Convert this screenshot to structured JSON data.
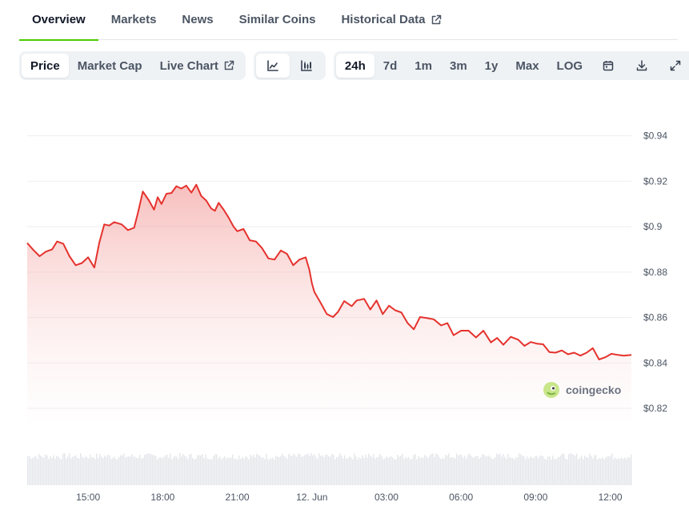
{
  "nav": {
    "tabs": [
      {
        "label": "Overview",
        "active": true
      },
      {
        "label": "Markets",
        "active": false
      },
      {
        "label": "News",
        "active": false
      },
      {
        "label": "Similar Coins",
        "active": false
      },
      {
        "label": "Historical Data",
        "active": false,
        "external_icon": "external-link-icon"
      }
    ]
  },
  "toolbar": {
    "metric_tabs": [
      {
        "label": "Price",
        "active": true
      },
      {
        "label": "Market Cap",
        "active": false
      },
      {
        "label": "Live Chart",
        "active": false,
        "external_icon": "external-link-icon"
      }
    ],
    "chart_type_buttons": [
      {
        "icon": "line-chart-icon",
        "active": true
      },
      {
        "icon": "candlestick-chart-icon",
        "active": false
      }
    ],
    "range_buttons": [
      {
        "label": "24h",
        "active": true
      },
      {
        "label": "7d",
        "active": false
      },
      {
        "label": "1m",
        "active": false
      },
      {
        "label": "3m",
        "active": false
      },
      {
        "label": "1y",
        "active": false
      },
      {
        "label": "Max",
        "active": false
      },
      {
        "label": "LOG",
        "active": false
      }
    ],
    "tool_icons": [
      "calendar-icon",
      "download-icon",
      "expand-icon"
    ]
  },
  "watermark": {
    "text": "coingecko",
    "icon": "gecko-logo-icon"
  },
  "colors": {
    "accent_green": "#4bcc00",
    "line_red": "#e5322d",
    "area_fill": "#f4a7a6",
    "grid": "#eceef1",
    "volume": "#e5e7eb"
  },
  "chart_data": {
    "type": "area",
    "title": "",
    "xlabel": "",
    "ylabel": "",
    "ylim": [
      0.814,
      0.948
    ],
    "y_ticks": [
      0.82,
      0.84,
      0.86,
      0.88,
      0.9,
      0.92,
      0.94
    ],
    "y_tick_labels": [
      "$0.82",
      "$0.84",
      "$0.86",
      "$0.88",
      "$0.9",
      "$0.92",
      "$0.94"
    ],
    "x_range_hours": [
      12.55,
      36.85
    ],
    "x_ticks": [
      {
        "h": 15,
        "label": "15:00"
      },
      {
        "h": 18,
        "label": "18:00"
      },
      {
        "h": 21,
        "label": "21:00"
      },
      {
        "h": 24,
        "label": "12. Jun"
      },
      {
        "h": 27,
        "label": "03:00"
      },
      {
        "h": 30,
        "label": "06:00"
      },
      {
        "h": 33,
        "label": "09:00"
      },
      {
        "h": 36,
        "label": "12:00"
      }
    ],
    "grid": true,
    "legend": "none",
    "series": [
      {
        "h": [
          12.55,
          12.8,
          13.05,
          13.3,
          13.55,
          13.75,
          14.0,
          14.25,
          14.5,
          14.75,
          15.0,
          15.25,
          15.45,
          15.65,
          15.85,
          16.05,
          16.35,
          16.6,
          16.85,
          17.0,
          17.2,
          17.45,
          17.65,
          17.8,
          17.95,
          18.15,
          18.35,
          18.55,
          18.75,
          18.95,
          19.15,
          19.35,
          19.55,
          19.75,
          19.95,
          20.1,
          20.25,
          20.45,
          20.65,
          20.85,
          21.0,
          21.25,
          21.5,
          21.75,
          22.0,
          22.25,
          22.5,
          22.75,
          23.0,
          23.25,
          23.5,
          23.75,
          23.9,
          24.0,
          24.1,
          24.35,
          24.6,
          24.85,
          25.05,
          25.3,
          25.6,
          25.8,
          26.1,
          26.35,
          26.6,
          26.85,
          27.1,
          27.35,
          27.6,
          27.85,
          28.1,
          28.35,
          28.6,
          28.9,
          29.2,
          29.45,
          29.7,
          30.0,
          30.3,
          30.6,
          30.9,
          31.2,
          31.45,
          31.7,
          32.0,
          32.3,
          32.55,
          32.8,
          33.05,
          33.3,
          33.55,
          33.8,
          34.05,
          34.3,
          34.55,
          34.8,
          35.05,
          35.3,
          35.55,
          35.8,
          36.05,
          36.3,
          36.55,
          36.85
        ],
        "values": [
          0.8928,
          0.8897,
          0.887,
          0.889,
          0.89,
          0.8935,
          0.8925,
          0.887,
          0.883,
          0.884,
          0.8865,
          0.882,
          0.893,
          0.901,
          0.9005,
          0.902,
          0.901,
          0.8985,
          0.8995,
          0.906,
          0.9155,
          0.9115,
          0.9075,
          0.913,
          0.91,
          0.9145,
          0.9148,
          0.9178,
          0.9168,
          0.9181,
          0.915,
          0.9185,
          0.9135,
          0.9115,
          0.908,
          0.907,
          0.9105,
          0.9075,
          0.904,
          0.9,
          0.898,
          0.899,
          0.894,
          0.8935,
          0.8905,
          0.886,
          0.8855,
          0.8895,
          0.888,
          0.883,
          0.8855,
          0.8865,
          0.881,
          0.875,
          0.8712,
          0.8665,
          0.8615,
          0.8602,
          0.8625,
          0.8672,
          0.865,
          0.8675,
          0.8682,
          0.8635,
          0.8675,
          0.8615,
          0.8652,
          0.8632,
          0.8622,
          0.8575,
          0.8548,
          0.8602,
          0.8598,
          0.8592,
          0.8565,
          0.8575,
          0.8522,
          0.8542,
          0.8542,
          0.8512,
          0.8542,
          0.849,
          0.851,
          0.848,
          0.8515,
          0.8502,
          0.8475,
          0.8492,
          0.8485,
          0.8482,
          0.8448,
          0.8445,
          0.8455,
          0.8438,
          0.8445,
          0.8432,
          0.8445,
          0.8465,
          0.8415,
          0.8425,
          0.844,
          0.8435,
          0.8432,
          0.8435
        ]
      }
    ]
  }
}
